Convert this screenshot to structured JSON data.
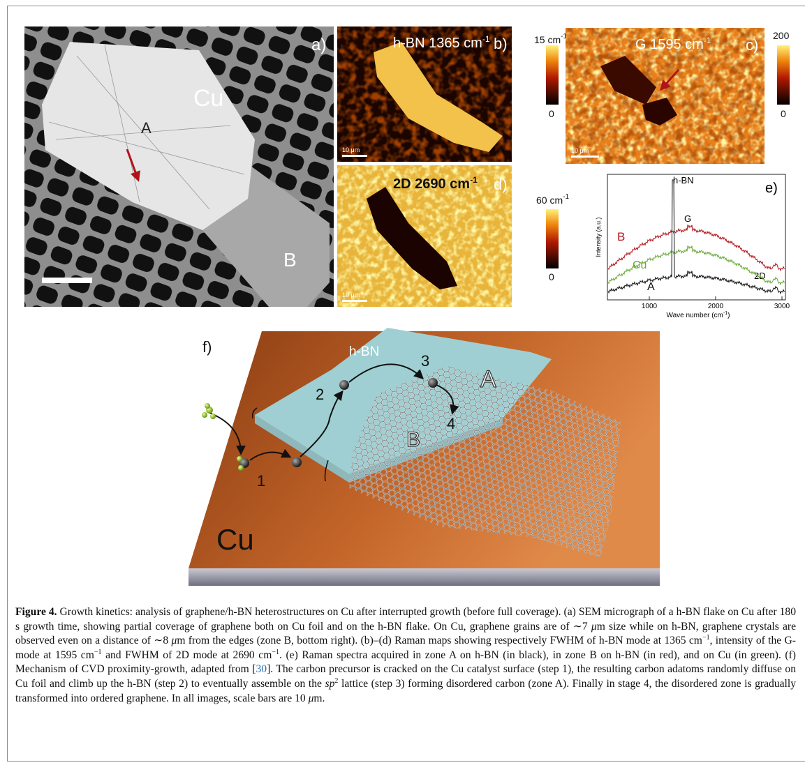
{
  "panels": {
    "a": {
      "label": "a)",
      "cu": "Cu",
      "zone_a": "A",
      "zone_b": "B"
    },
    "b": {
      "title": "h-BN 1365 cm",
      "title_sup": "-1",
      "label": "b)",
      "scale": "10 μm",
      "colorbar_max": "15 cm",
      "colorbar_max_sup": "-1",
      "colorbar_min": "0"
    },
    "c": {
      "title": "G 1595 cm",
      "title_sup": "-1",
      "label": "c)",
      "scale": "10 μm",
      "colorbar_max": "200",
      "colorbar_min": "0"
    },
    "d": {
      "title": "2D 2690 cm",
      "title_sup": "-1",
      "label": "d)",
      "scale": "10 μm",
      "colorbar_max": "60 cm",
      "colorbar_max_sup": "-1",
      "colorbar_min": "0"
    },
    "e": {
      "label": "e)",
      "peak_hbn": "h-BN",
      "peak_g": "G",
      "peak_2d": "2D",
      "series": [
        "B",
        "Cu",
        "A"
      ],
      "y_label": "Intensity (a.u.)",
      "x_label": "Wave number (cm",
      "x_label_sup": "-1",
      "x_label_end": ")",
      "xticks": [
        "1000",
        "2000",
        "3000"
      ]
    },
    "f": {
      "label": "f)",
      "hbn": "h-BN",
      "steps": [
        "1",
        "2",
        "3",
        "4"
      ],
      "zone_a": "A",
      "zone_b": "B",
      "cu": "Cu"
    }
  },
  "caption": {
    "label": "Figure 4.",
    "parts": [
      " Growth kinetics: analysis of graphene/h-BN heterostructures on Cu after interrupted growth (before full coverage). (a) SEM micrograph of a h-BN flake on Cu after 180 s growth time, showing partial coverage of graphene both on Cu foil and on the h-BN flake. On Cu, graphene grains are of ∼7 ",
      "μ",
      "m size while on h-BN, graphene crystals are observed even on a distance of ∼8 ",
      "μ",
      "m from the edges (zone B, bottom right). (b)–(d) Raman maps showing respectively FWHM of h-BN mode at 1365 cm",
      "−1",
      ", intensity of the G-mode at 1595 cm",
      "−1",
      " and FWHM of 2D mode at 2690 cm",
      "−1",
      ". (e) Raman spectra acquired in zone A on h-BN (in black), in zone B on h-BN (in red), and on Cu (in green). (f) Mechanism of CVD proximity-growth, adapted from [",
      "30",
      "]. The carbon precursor is cracked on the Cu catalyst surface (step 1), the resulting carbon adatoms randomly diffuse on Cu foil and climb up the h-BN (step 2) to eventually assemble on the ",
      "sp",
      "2",
      " lattice (step 3) forming disordered carbon (zone A). Finally in stage 4, the disordered zone is gradually transformed into ordered graphene. In all images, scale bars are 10 ",
      "μ",
      "m."
    ]
  }
}
